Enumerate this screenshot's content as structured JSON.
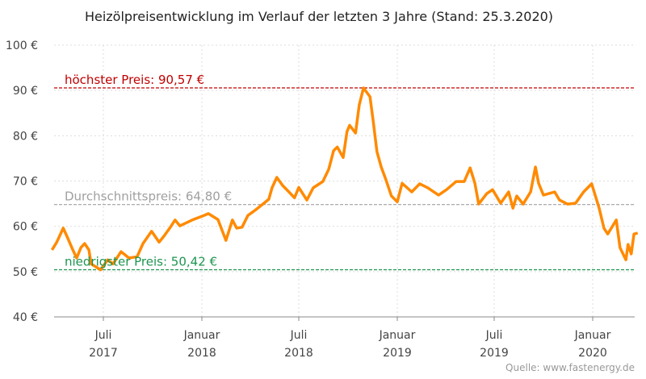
{
  "chart_data": {
    "type": "line",
    "title": "Heizölpreisentwicklung im Verlauf der letzten 3 Jahre (Stand: 25.3.2020)",
    "xlabel": "",
    "ylabel": "",
    "ylim": [
      40,
      100
    ],
    "xlim": [
      "2017-03-25",
      "2020-03-25"
    ],
    "grid": true,
    "y_ticks": [
      {
        "value": 40,
        "label": "40 €"
      },
      {
        "value": 50,
        "label": "50 €"
      },
      {
        "value": 60,
        "label": "60 €"
      },
      {
        "value": 70,
        "label": "70 €"
      },
      {
        "value": 80,
        "label": "80 €"
      },
      {
        "value": 90,
        "label": "90 €"
      },
      {
        "value": 100,
        "label": "100 €"
      }
    ],
    "x_ticks": [
      {
        "date": "2017-07-01",
        "month": "Juli",
        "year": "2017"
      },
      {
        "date": "2018-01-01",
        "month": "Januar",
        "year": "2018"
      },
      {
        "date": "2018-07-01",
        "month": "Juli",
        "year": "2018"
      },
      {
        "date": "2019-01-01",
        "month": "Januar",
        "year": "2019"
      },
      {
        "date": "2019-07-01",
        "month": "Juli",
        "year": "2019"
      },
      {
        "date": "2020-01-01",
        "month": "Januar",
        "year": "2020"
      }
    ],
    "reference_lines": [
      {
        "label": "höchster Preis: 90,57 €",
        "value": 90.57,
        "color": "#c00000"
      },
      {
        "label": "Durchschnittspreis: 64,80 €",
        "value": 64.8,
        "color": "#a0a0a0"
      },
      {
        "label": "niedrigster Preis: 50,42 €",
        "value": 50.42,
        "color": "#1e9550"
      }
    ],
    "series": [
      {
        "color": "#ff8a00",
        "points": [
          [
            "2017-03-27",
            54.8
          ],
          [
            "2017-04-05",
            56.5
          ],
          [
            "2017-04-17",
            59.6
          ],
          [
            "2017-04-24",
            57.8
          ],
          [
            "2017-05-05",
            54.8
          ],
          [
            "2017-05-12",
            53.0
          ],
          [
            "2017-05-20",
            55.3
          ],
          [
            "2017-05-27",
            56.2
          ],
          [
            "2017-06-04",
            54.8
          ],
          [
            "2017-06-08",
            51.7
          ],
          [
            "2017-06-26",
            50.4
          ],
          [
            "2017-07-09",
            52.6
          ],
          [
            "2017-07-19",
            51.7
          ],
          [
            "2017-08-03",
            54.4
          ],
          [
            "2017-08-18",
            53.0
          ],
          [
            "2017-09-02",
            53.3
          ],
          [
            "2017-09-13",
            56.2
          ],
          [
            "2017-09-29",
            58.9
          ],
          [
            "2017-10-13",
            56.5
          ],
          [
            "2017-10-22",
            57.8
          ],
          [
            "2017-11-02",
            59.6
          ],
          [
            "2017-11-12",
            61.4
          ],
          [
            "2017-11-21",
            60.1
          ],
          [
            "2017-12-14",
            61.4
          ],
          [
            "2018-01-01",
            62.2
          ],
          [
            "2018-01-13",
            62.8
          ],
          [
            "2018-01-31",
            61.5
          ],
          [
            "2018-02-15",
            56.9
          ],
          [
            "2018-02-27",
            61.4
          ],
          [
            "2018-03-07",
            59.6
          ],
          [
            "2018-03-17",
            59.8
          ],
          [
            "2018-03-28",
            62.4
          ],
          [
            "2018-04-12",
            63.7
          ],
          [
            "2018-04-27",
            65.1
          ],
          [
            "2018-05-06",
            66.0
          ],
          [
            "2018-05-12",
            68.5
          ],
          [
            "2018-05-21",
            70.8
          ],
          [
            "2018-06-01",
            69.0
          ],
          [
            "2018-06-11",
            67.8
          ],
          [
            "2018-06-23",
            66.3
          ],
          [
            "2018-07-01",
            68.6
          ],
          [
            "2018-07-16",
            65.8
          ],
          [
            "2018-07-28",
            68.5
          ],
          [
            "2018-08-15",
            69.9
          ],
          [
            "2018-08-26",
            72.6
          ],
          [
            "2018-09-04",
            76.7
          ],
          [
            "2018-09-11",
            77.5
          ],
          [
            "2018-09-22",
            75.2
          ],
          [
            "2018-09-29",
            80.9
          ],
          [
            "2018-10-04",
            82.3
          ],
          [
            "2018-10-15",
            80.6
          ],
          [
            "2018-10-22",
            86.8
          ],
          [
            "2018-10-30",
            90.57
          ],
          [
            "2018-11-11",
            88.6
          ],
          [
            "2018-11-17",
            83.2
          ],
          [
            "2018-11-24",
            76.5
          ],
          [
            "2018-12-02",
            73.1
          ],
          [
            "2018-12-11",
            70.2
          ],
          [
            "2018-12-21",
            66.7
          ],
          [
            "2019-01-01",
            65.4
          ],
          [
            "2019-01-10",
            69.5
          ],
          [
            "2019-01-28",
            67.6
          ],
          [
            "2019-02-12",
            69.4
          ],
          [
            "2019-02-27",
            68.5
          ],
          [
            "2019-03-19",
            66.9
          ],
          [
            "2019-04-03",
            68.1
          ],
          [
            "2019-04-21",
            69.9
          ],
          [
            "2019-05-06",
            69.9
          ],
          [
            "2019-05-17",
            72.9
          ],
          [
            "2019-05-26",
            69.5
          ],
          [
            "2019-06-02",
            64.9
          ],
          [
            "2019-06-17",
            67.2
          ],
          [
            "2019-06-28",
            68.1
          ],
          [
            "2019-07-13",
            65.1
          ],
          [
            "2019-07-28",
            67.6
          ],
          [
            "2019-08-05",
            64.0
          ],
          [
            "2019-08-12",
            66.7
          ],
          [
            "2019-08-24",
            64.9
          ],
          [
            "2019-09-07",
            67.6
          ],
          [
            "2019-09-16",
            73.1
          ],
          [
            "2019-09-22",
            69.5
          ],
          [
            "2019-10-01",
            66.9
          ],
          [
            "2019-10-22",
            67.6
          ],
          [
            "2019-10-31",
            65.8
          ],
          [
            "2019-11-15",
            64.9
          ],
          [
            "2019-11-30",
            65.1
          ],
          [
            "2019-12-15",
            67.6
          ],
          [
            "2019-12-30",
            69.4
          ],
          [
            "2020-01-13",
            64.0
          ],
          [
            "2020-01-22",
            59.6
          ],
          [
            "2020-01-29",
            58.3
          ],
          [
            "2020-02-14",
            61.4
          ],
          [
            "2020-02-21",
            55.3
          ],
          [
            "2020-03-03",
            52.6
          ],
          [
            "2020-03-07",
            56.0
          ],
          [
            "2020-03-13",
            53.9
          ],
          [
            "2020-03-18",
            58.3
          ],
          [
            "2020-03-25",
            58.5
          ]
        ]
      }
    ],
    "source": "Quelle: www.fastenergy.de"
  }
}
